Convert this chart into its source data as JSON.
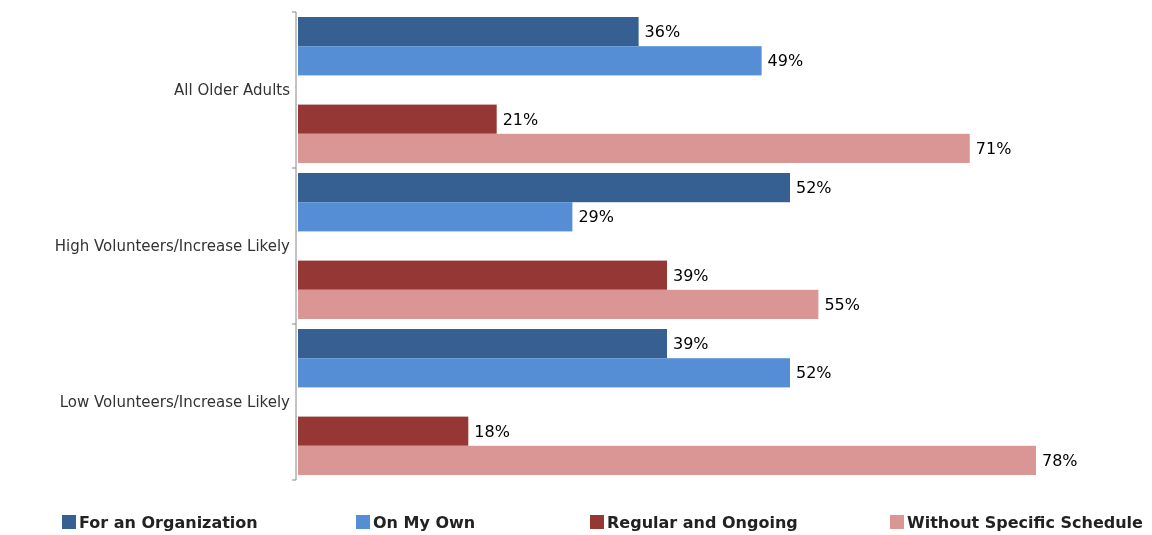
{
  "chart_data": {
    "type": "bar",
    "orientation": "horizontal",
    "categories": [
      "All Older Adults",
      "High Volunteers/Increase Likely",
      "Low Volunteers/Increase Likely"
    ],
    "series": [
      {
        "name": "For an Organization",
        "color": "#366092",
        "values": [
          36,
          52,
          39
        ],
        "value_labels": [
          "36%",
          "52%",
          "39%"
        ]
      },
      {
        "name": "On My Own",
        "color": "#558ed5",
        "values": [
          49,
          29,
          52
        ],
        "value_labels": [
          "49%",
          "29%",
          "52%"
        ]
      },
      {
        "name": "Regular and Ongoing",
        "color": "#953735",
        "values": [
          21,
          39,
          18
        ],
        "value_labels": [
          "21%",
          "39%",
          "18%"
        ]
      },
      {
        "name": "Without Specific Schedule",
        "color": "#d99694",
        "values": [
          71,
          55,
          78
        ],
        "value_labels": [
          "71%",
          "55%",
          "78%"
        ]
      }
    ],
    "legend": "bottom",
    "grid": false
  }
}
